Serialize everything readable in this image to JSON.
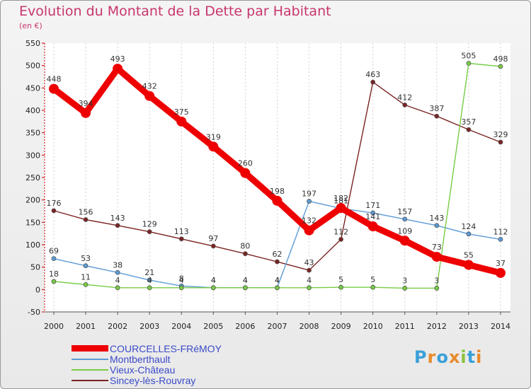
{
  "chart_data": {
    "type": "line",
    "title": "Evolution du Montant de la Dette par Habitant",
    "subtitle": "(en €)",
    "xlabel": "",
    "ylabel": "",
    "ylim": [
      -50,
      550
    ],
    "yticks": [
      -50,
      0,
      50,
      100,
      150,
      200,
      250,
      300,
      350,
      400,
      450,
      500,
      550
    ],
    "x": [
      2000,
      2001,
      2002,
      2003,
      2004,
      2005,
      2006,
      2007,
      2008,
      2009,
      2010,
      2011,
      2012,
      2013,
      2014
    ],
    "grid": "vertical dashed",
    "legend_position": "bottom-left",
    "series": [
      {
        "name": "Sincey-lès-Rouvray",
        "color": "#7b2222",
        "values": [
          176,
          156,
          143,
          129,
          113,
          97,
          80,
          62,
          43,
          112,
          463,
          412,
          387,
          357,
          329
        ]
      },
      {
        "name": "Montberthault",
        "color": "#5b9bd5",
        "values": [
          69,
          53,
          38,
          21,
          8,
          4,
          4,
          4,
          197,
          181,
          171,
          157,
          143,
          124,
          112
        ]
      },
      {
        "name": "Vieux-Château",
        "color": "#77cc44",
        "values": [
          18,
          11,
          4,
          4,
          4,
          4,
          4,
          4,
          4,
          5,
          5,
          3,
          3,
          505,
          498
        ]
      },
      {
        "name": "COURCELLES-FRéMOY",
        "color": "#ee0000",
        "values": [
          448,
          394,
          493,
          432,
          375,
          319,
          260,
          198,
          132,
          182,
          141,
          109,
          73,
          55,
          37
        ]
      }
    ],
    "legend": [
      "COURCELLES-FRéMOY",
      "Montberthault",
      "Vieux-Château",
      "Sincey-lès-Rouvray"
    ]
  },
  "logo": {
    "text": "Proxiti"
  }
}
